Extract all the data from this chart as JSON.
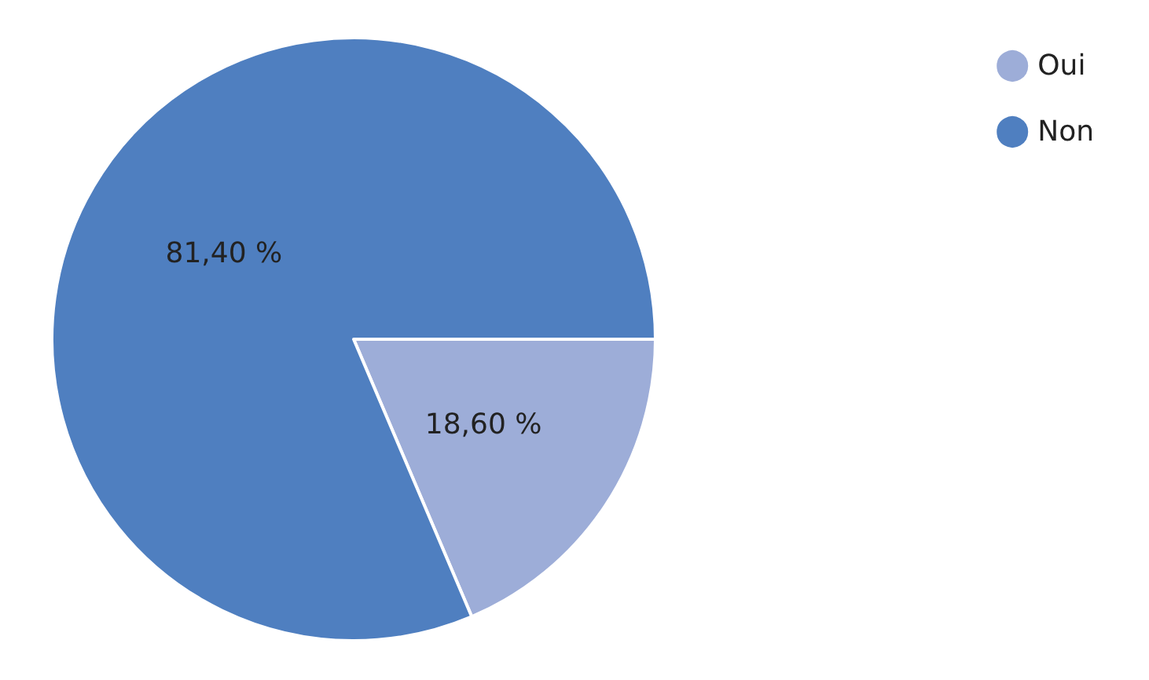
{
  "chart_data": {
    "type": "pie",
    "categories": [
      "Oui",
      "Non"
    ],
    "values": [
      18.6,
      81.4
    ],
    "colors": [
      "#9dadd8",
      "#4f7fc0"
    ],
    "value_labels": [
      "18,60 %",
      "81,40 %"
    ],
    "legend": "top right"
  }
}
